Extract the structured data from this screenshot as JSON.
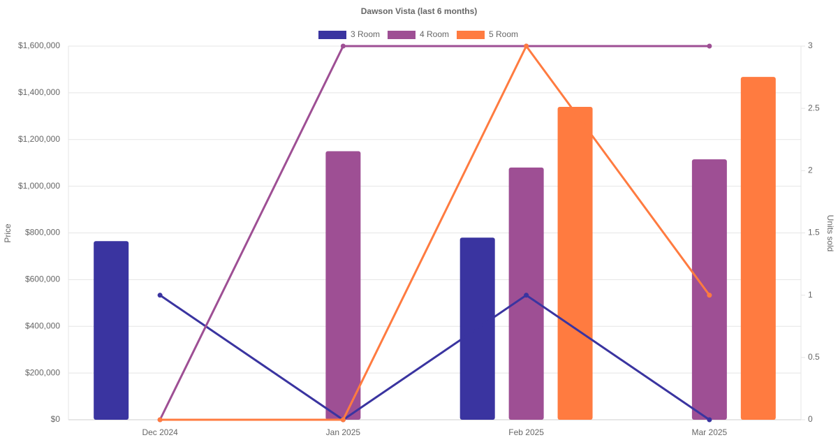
{
  "chart_data": {
    "type": "bar-line",
    "title": "Dawson Vista (last 6 months)",
    "categories": [
      "Dec 2024",
      "Jan 2025",
      "Feb 2025",
      "Mar 2025"
    ],
    "y_label": "Price",
    "y2_label": "Units sold",
    "series": [
      {
        "name": "3 Room",
        "color": "#3a34a0",
        "values": [
          765000,
          null,
          780000,
          null
        ],
        "units": [
          1,
          0,
          1,
          0
        ]
      },
      {
        "name": "4 Room",
        "color": "#9e4f94",
        "values": [
          null,
          1150000,
          1080000,
          1115000
        ],
        "units": [
          0,
          3,
          3,
          3
        ]
      },
      {
        "name": "5 Room",
        "color": "#ff7b40",
        "values": [
          null,
          null,
          1340000,
          1468000
        ],
        "units": [
          0,
          0,
          3,
          1
        ]
      }
    ],
    "ylim": [
      0,
      1600000
    ],
    "yticks": [
      {
        "value": 0,
        "label": "$0"
      },
      {
        "value": 200000,
        "label": "$200,000"
      },
      {
        "value": 400000,
        "label": "$400,000"
      },
      {
        "value": 600000,
        "label": "$600,000"
      },
      {
        "value": 800000,
        "label": "$800,000"
      },
      {
        "value": 1000000,
        "label": "$1,000,000"
      },
      {
        "value": 1200000,
        "label": "$1,200,000"
      },
      {
        "value": 1400000,
        "label": "$1,400,000"
      },
      {
        "value": 1600000,
        "label": "$1,600,000"
      }
    ],
    "y2lim": [
      0,
      3
    ],
    "y2ticks": [
      0,
      0.5,
      1,
      1.5,
      2,
      2.5,
      3
    ],
    "grid": true
  }
}
